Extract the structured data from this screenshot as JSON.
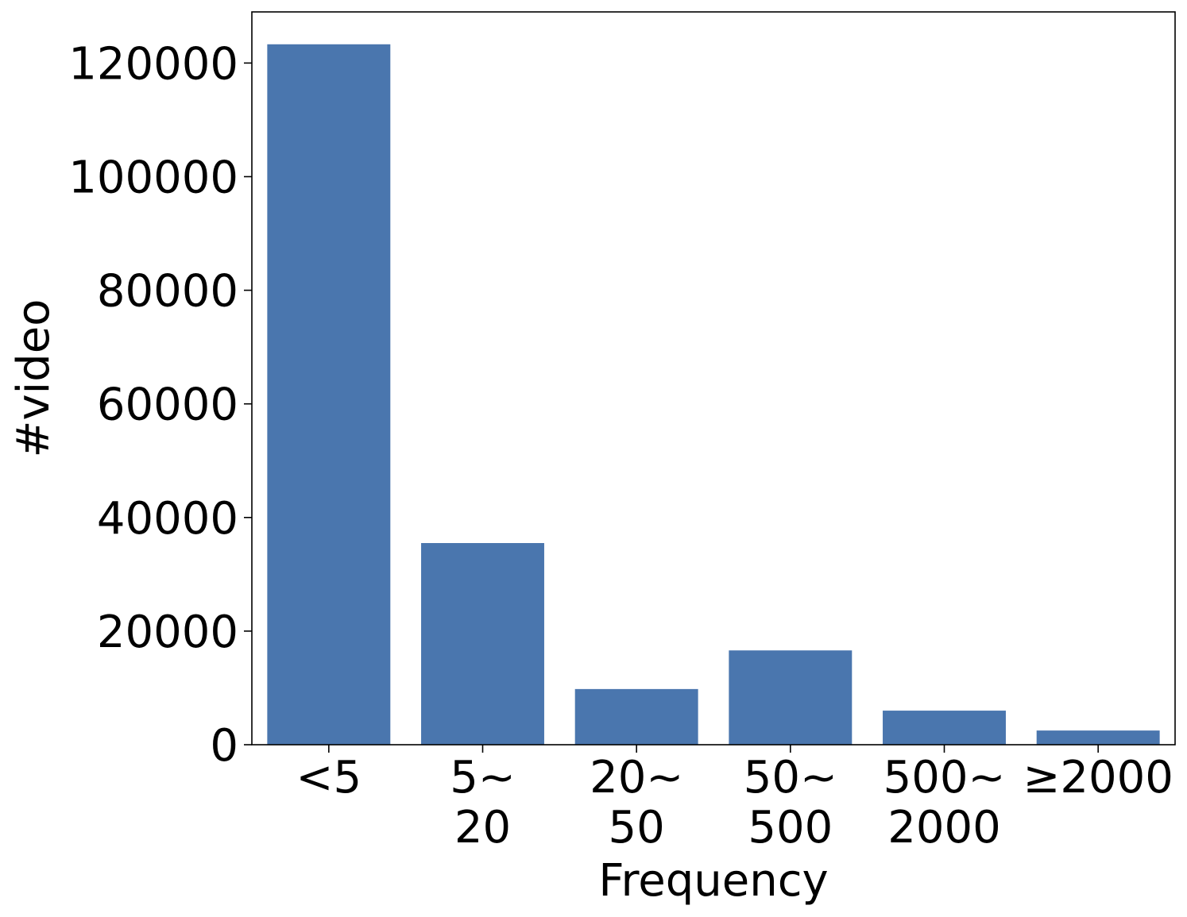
{
  "chart_data": {
    "type": "bar",
    "title": "",
    "xlabel": "Frequency",
    "ylabel": "#video",
    "categories": [
      [
        "<5"
      ],
      [
        "5~",
        "20"
      ],
      [
        "20~",
        "50"
      ],
      [
        "50~",
        "500"
      ],
      [
        "500~",
        "2000"
      ],
      [
        "≥2000"
      ]
    ],
    "values": [
      123300,
      35500,
      9800,
      16600,
      6000,
      2500
    ],
    "ylim": [
      0,
      129000
    ],
    "yticks": [
      0,
      20000,
      40000,
      60000,
      80000,
      100000,
      120000
    ],
    "bar_color": "#4a76ae",
    "grid": false,
    "legend": "none"
  }
}
